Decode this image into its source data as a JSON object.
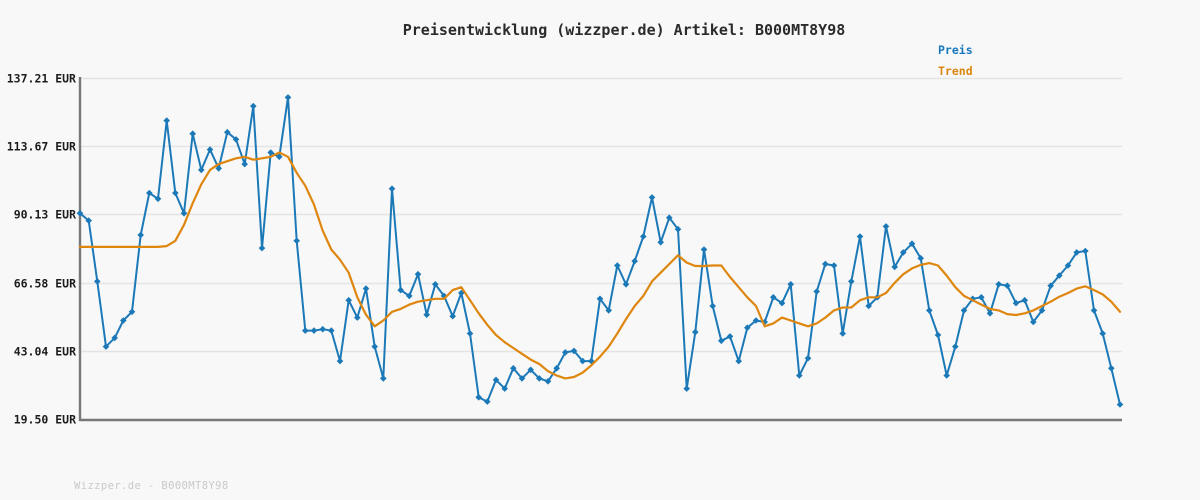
{
  "page": {
    "title": "Preisentwicklung (wizzper.de) Artikel: B000MT8Y98",
    "watermark": "Wizzper.de - B000MT8Y98"
  },
  "legend": {
    "position": "top-right",
    "items": [
      {
        "label": "Preis",
        "color": "#1778be"
      },
      {
        "label": "Trend",
        "color": "#dd860f"
      }
    ]
  },
  "colors": {
    "background": "#f8f8f8",
    "gridline": "#e4e4e4",
    "axis": "#787878",
    "price_line": "#1c79b8",
    "trend_line": "#de860e",
    "title_text": "#2b2b2b",
    "tick_text": "#1c1c1c",
    "watermark_text": "#c9c9c9"
  },
  "chart_data": {
    "type": "line",
    "title": "Preisentwicklung (wizzper.de) Artikel: B000MT8Y98",
    "currency": "EUR",
    "ylim": [
      19.5,
      137.21
    ],
    "grid": "horizontal-only",
    "x_axis_labels": "none",
    "legend_position": "top-right-above-plot",
    "y_ticks": [
      {
        "value": 137.21,
        "label": "137.21 EUR"
      },
      {
        "value": 113.67,
        "label": "113.67 EUR"
      },
      {
        "value": 90.13,
        "label": "90.13 EUR"
      },
      {
        "value": 66.58,
        "label": "66.58 EUR"
      },
      {
        "value": 43.04,
        "label": "43.04 EUR"
      },
      {
        "value": 19.5,
        "label": "19.50 EUR"
      }
    ],
    "series": [
      {
        "name": "Preis",
        "color": "#1c79b8",
        "marker": "diamond",
        "line_width": 2,
        "values": [
          90.5,
          88,
          67,
          44.5,
          47.5,
          53.5,
          56.5,
          83,
          97.5,
          95.5,
          122.5,
          97.5,
          90.5,
          118,
          105.5,
          112.5,
          106,
          118.5,
          116,
          107.5,
          127.5,
          78.5,
          111.5,
          110,
          130.5,
          81,
          50,
          50,
          50.5,
          50,
          39.5,
          60.5,
          54.5,
          64.5,
          44.5,
          33.5,
          99,
          64,
          62,
          69.5,
          55.5,
          66,
          62,
          55,
          63,
          49,
          27,
          25.5,
          33,
          30,
          37,
          33.5,
          36.5,
          33.5,
          32.5,
          37,
          42.5,
          43,
          39.5,
          39.5,
          61,
          57,
          72.5,
          66,
          74,
          82.5,
          96,
          80.5,
          89,
          85,
          30,
          49.5,
          78,
          58.5,
          46.5,
          48,
          39.5,
          51,
          53.5,
          53,
          61.5,
          59.5,
          66,
          34.5,
          40.5,
          63.5,
          73,
          72.5,
          49,
          67,
          82.5,
          58.5,
          61.5,
          86,
          72,
          77,
          80,
          75,
          57,
          48.5,
          34.5,
          44.5,
          57,
          61,
          61.5,
          56,
          66,
          65.5,
          59.5,
          60.5,
          53,
          57,
          65.5,
          69,
          72.5,
          77,
          77.5,
          57,
          49,
          37,
          24.5
        ]
      },
      {
        "name": "Trend",
        "color": "#de860e",
        "marker": "none",
        "line_width": 2.2,
        "values": [
          78.9,
          78.9,
          78.9,
          78.9,
          78.9,
          78.9,
          78.9,
          78.9,
          78.9,
          78.9,
          79.2,
          81,
          86.5,
          94,
          100.5,
          105.5,
          107.5,
          108.5,
          109.5,
          110,
          109,
          109.5,
          110,
          111.5,
          110,
          104.5,
          100,
          93.5,
          84.5,
          78,
          74.5,
          70,
          61.5,
          55.5,
          51.5,
          53.5,
          56.5,
          57.5,
          59,
          60,
          60.5,
          61,
          61,
          64,
          65,
          60.5,
          56,
          52,
          48.5,
          46,
          44,
          42,
          40,
          38.5,
          36,
          34.5,
          33.5,
          34,
          35.5,
          38,
          41,
          44.5,
          49,
          54,
          58.5,
          62,
          67,
          70,
          73,
          76,
          73.5,
          72.3,
          72.3,
          72.5,
          72.5,
          68.5,
          65,
          61.5,
          58.5,
          51.5,
          52.5,
          54.5,
          53.5,
          52.5,
          51.5,
          52.5,
          54.5,
          57,
          58,
          58,
          60.5,
          61.5,
          61.5,
          63,
          66.5,
          69.5,
          71.5,
          72.7,
          73.3,
          72.5,
          69,
          65,
          62,
          60.5,
          59,
          57.5,
          57,
          55.7,
          55.4,
          56,
          57,
          58.5,
          60,
          61.7,
          63,
          64.5,
          65.3,
          64,
          62.5,
          60,
          56.5
        ]
      }
    ]
  }
}
